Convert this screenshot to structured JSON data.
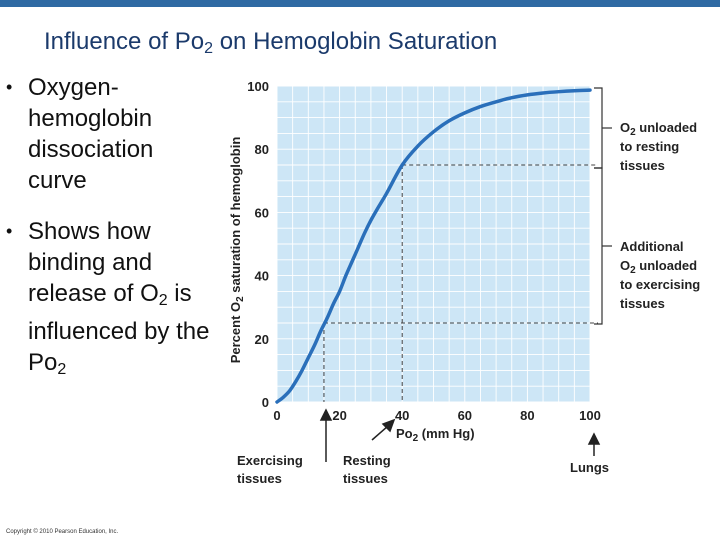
{
  "slide": {
    "title_main": "Influence of Po",
    "title_sub": "2",
    "title_rest": " on Hemoglobin Saturation",
    "bullet1": "Oxygen-hemoglobin dissociation curve",
    "bullet2_main": "Shows how binding and release of O",
    "bullet2_sub1": "2",
    "bullet2_mid": " is influenced by the Po",
    "bullet2_sub2": "2",
    "copyright": "Copyright © 2010 Pearson Education, Inc.",
    "bullet_glyph": "•"
  },
  "colors": {
    "title": "#1b3a6b",
    "plot_bg": "#cde6f6",
    "grid": "#ffffff",
    "curve": "#2a6fba",
    "topbar": "#2f6aa3"
  },
  "chart_data": {
    "type": "line",
    "xlabel_main": "Po",
    "xlabel_sub": "2",
    "xlabel_rest": " (mm Hg)",
    "ylabel_main": "Percent O",
    "ylabel_sub": "2",
    "ylabel_rest": " saturation of hemoglobin",
    "xlim": [
      0,
      100
    ],
    "ylim": [
      0,
      100
    ],
    "x_ticks": [
      0,
      20,
      40,
      60,
      80,
      100
    ],
    "y_ticks": [
      0,
      20,
      40,
      60,
      80,
      100
    ],
    "grid": true,
    "series": [
      {
        "x": [
          0,
          2,
          4,
          6,
          8,
          10,
          12,
          14,
          16,
          18,
          20,
          22,
          24,
          26,
          28,
          30,
          32,
          35,
          40,
          45,
          50,
          55,
          60,
          65,
          70,
          75,
          80,
          85,
          90,
          95,
          100
        ],
        "y": [
          0,
          1.5,
          3.5,
          6.5,
          10,
          14,
          18,
          22.5,
          26.5,
          31,
          35,
          40,
          44.5,
          49,
          53.5,
          57.5,
          61,
          66,
          75,
          81,
          85.5,
          89,
          91.5,
          93.5,
          95,
          96.3,
          97.2,
          97.8,
          98.2,
          98.5,
          98.7
        ]
      }
    ],
    "reference_lines": {
      "exercising": {
        "x": 15,
        "y": 25
      },
      "resting": {
        "x": 40,
        "y": 75
      },
      "lungs": {
        "x": 100,
        "y": 98
      }
    },
    "annotations": {
      "unloaded_resting_l1_pre": "O",
      "unloaded_resting_l1_sub": "2",
      "unloaded_resting_l1_post": " unloaded",
      "unloaded_resting_l2": "to resting",
      "unloaded_resting_l3": "tissues",
      "exercising_l1": "Additional",
      "exercising_l2_pre": "O",
      "exercising_l2_sub": "2",
      "exercising_l2_post": " unloaded",
      "exercising_l3": "to exercising",
      "exercising_l4": "tissues",
      "label_exercising_l1": "Exercising",
      "label_exercising_l2": "tissues",
      "label_resting_l1": "Resting",
      "label_resting_l2": "tissues",
      "label_lungs": "Lungs"
    }
  }
}
